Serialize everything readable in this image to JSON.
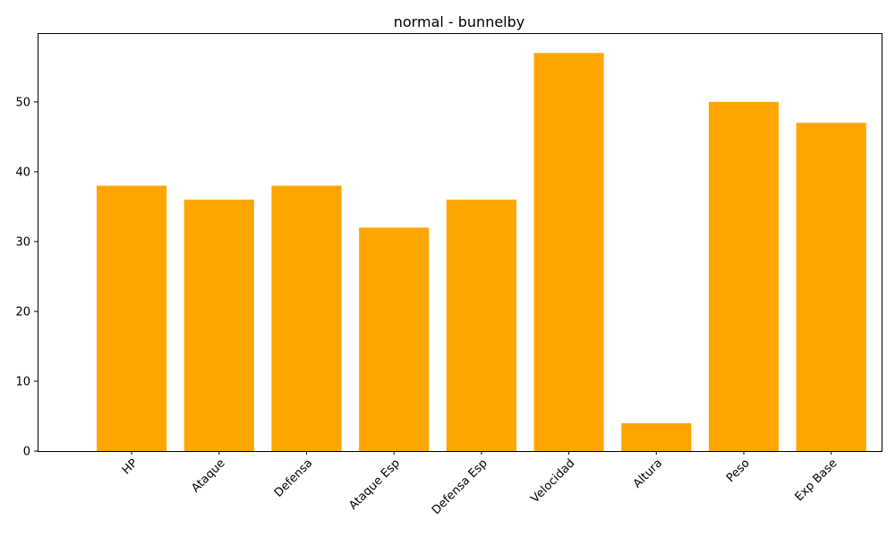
{
  "chart_data": {
    "type": "bar",
    "title": "normal - bunnelby",
    "xlabel": "",
    "ylabel": "",
    "categories": [
      "HP",
      "Ataque",
      "Defensa",
      "Ataque Esp",
      "Defensa Esp",
      "Velocidad",
      "Altura",
      "Peso",
      "Exp Base"
    ],
    "values": [
      38,
      36,
      38,
      32,
      36,
      57,
      4,
      50,
      47
    ],
    "ylim": [
      0,
      59.85
    ],
    "yticks": [
      0,
      10,
      20,
      30,
      40,
      50
    ],
    "bar_color": "#ffa500",
    "grid": false,
    "xtick_rotation": 45
  }
}
